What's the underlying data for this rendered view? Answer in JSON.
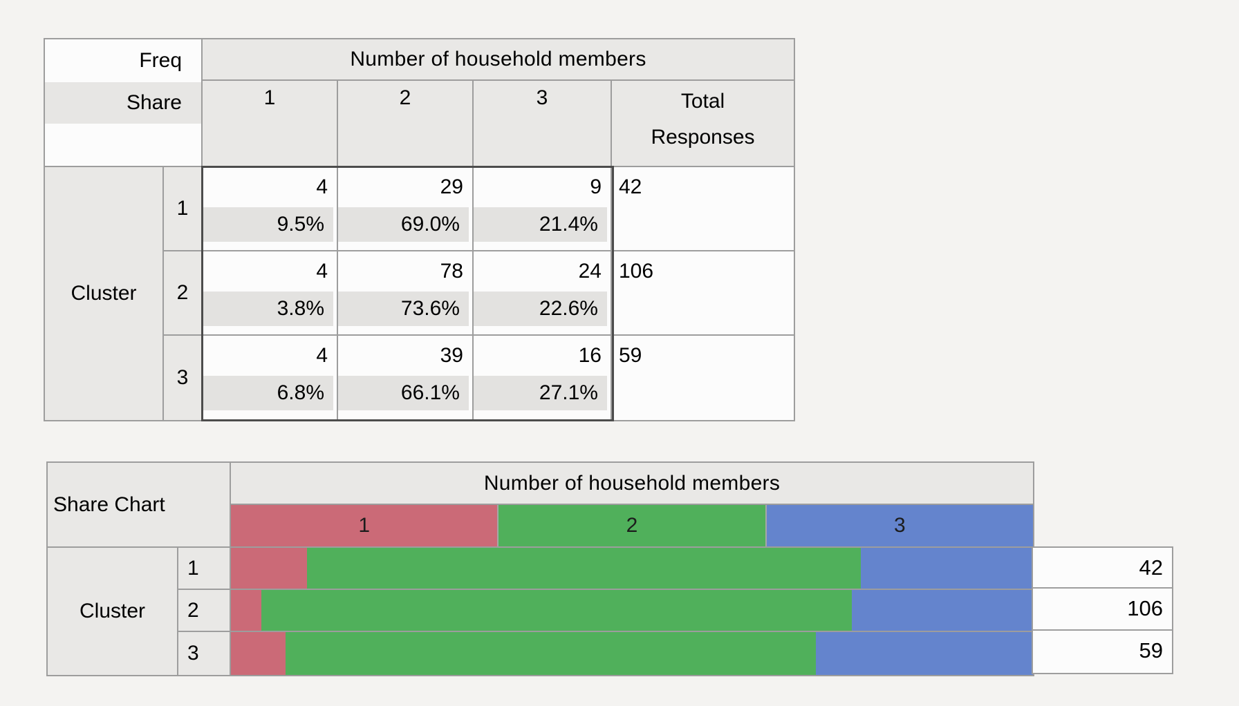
{
  "freq_table": {
    "corner": {
      "line1": "Freq",
      "line2": "Share"
    },
    "col_group_header": "Number of household members",
    "col_headers": [
      "1",
      "2",
      "3"
    ],
    "total_header": {
      "line1": "Total",
      "line2": "Responses"
    },
    "row_group_label": "Cluster",
    "rows": [
      {
        "label": "1",
        "counts": [
          "4",
          "29",
          "9"
        ],
        "shares": [
          "9.5%",
          "69.0%",
          "21.4%"
        ],
        "total": "42"
      },
      {
        "label": "2",
        "counts": [
          "4",
          "78",
          "24"
        ],
        "shares": [
          "3.8%",
          "73.6%",
          "22.6%"
        ],
        "total": "106"
      },
      {
        "label": "3",
        "counts": [
          "4",
          "39",
          "16"
        ],
        "shares": [
          "6.8%",
          "66.1%",
          "27.1%"
        ],
        "total": "59"
      }
    ]
  },
  "share_chart": {
    "title": "Share Chart",
    "col_group_header": "Number of household members",
    "legend": [
      "1",
      "2",
      "3"
    ],
    "colors": [
      "#cb6a77",
      "#50b05b",
      "#6484cd"
    ],
    "row_group_label": "Cluster",
    "rows": [
      {
        "label": "1",
        "shares": [
          9.5,
          69.0,
          21.4
        ],
        "total": "42"
      },
      {
        "label": "2",
        "shares": [
          3.8,
          73.6,
          22.6
        ],
        "total": "106"
      },
      {
        "label": "3",
        "shares": [
          6.8,
          66.1,
          27.1
        ],
        "total": "59"
      }
    ]
  },
  "chart_data": {
    "type": "bar",
    "stacked": true,
    "orientation": "horizontal",
    "title": "Share Chart",
    "categories": [
      "Cluster 1",
      "Cluster 2",
      "Cluster 3"
    ],
    "series": [
      {
        "name": "1",
        "values": [
          9.5,
          3.8,
          6.8
        ],
        "color": "#cb6a77"
      },
      {
        "name": "2",
        "values": [
          69.0,
          73.6,
          66.1
        ],
        "color": "#50b05b"
      },
      {
        "name": "3",
        "values": [
          21.4,
          22.6,
          27.1
        ],
        "color": "#6484cd"
      }
    ],
    "totals": [
      42,
      106,
      59
    ],
    "unit": "%",
    "xlabel": "Number of household members",
    "ylabel": "Cluster"
  }
}
